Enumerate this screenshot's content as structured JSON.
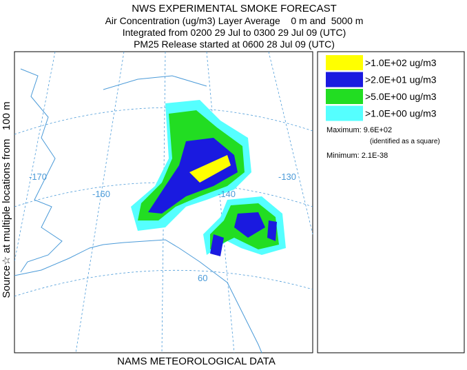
{
  "header": {
    "title": "NWS EXPERIMENTAL SMOKE FORECAST",
    "lines": [
      "Air Concentration (ug/m3) Layer Average    0 m and  5000 m",
      "Integrated from 0200 29 Jul to 0300 29 Jul 09 (UTC)",
      "PM25 Release started at 0600 28 Jul 09 (UTC)"
    ]
  },
  "side_label": "Source☆ at multiple locations from   100 m",
  "map": {
    "grid_labels": [
      "-170",
      "-160",
      "-140",
      "-130",
      "60"
    ]
  },
  "legend": {
    "items": [
      {
        "label": ">1.0E+02 ug/m3",
        "color": "#ffff00"
      },
      {
        "label": ">2.0E+01 ug/m3",
        "color": "#1a1ae0"
      },
      {
        "label": ">5.0E+00 ug/m3",
        "color": "#22dd22"
      },
      {
        "label": ">1.0E+00 ug/m3",
        "color": "#55ffff"
      }
    ]
  },
  "stats": {
    "maximum": "Maximum: 9.6E+02",
    "maximum_note": "(identified as a square)",
    "minimum": "Minimum: 2.1E-38"
  },
  "footer": "NAMS METEOROLOGICAL DATA"
}
